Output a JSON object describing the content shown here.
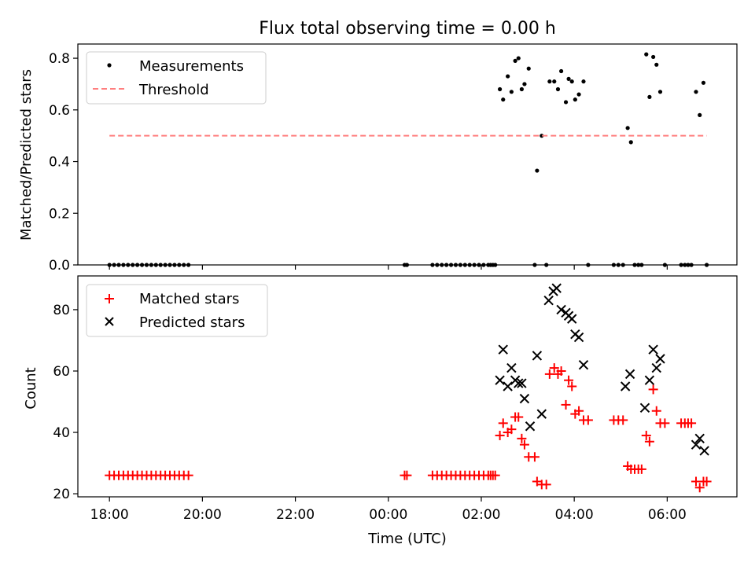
{
  "figure": {
    "title": "Flux total observing time = 0.00 h",
    "xlabel": "Time (UTC)",
    "x_tick_labels": [
      "18:00",
      "20:00",
      "22:00",
      "00:00",
      "02:00",
      "04:00",
      "06:00"
    ],
    "x_range_hours": [
      -0.68,
      13.5
    ]
  },
  "chart_data": [
    {
      "type": "scatter",
      "ylabel": "Matched/Predicted stars",
      "ylim": [
        0,
        0.855
      ],
      "y_ticks": [
        0.0,
        0.2,
        0.4,
        0.6,
        0.8
      ],
      "y_tick_labels": [
        "0.0",
        "0.2",
        "0.4",
        "0.6",
        "0.8"
      ],
      "legend_placement": "upper-left",
      "x_unit": "hours since 18:00 UTC",
      "series": [
        {
          "name": "Measurements",
          "marker": "dot",
          "color": "#000000",
          "points": [
            [
              0.0,
              0
            ],
            [
              0.1,
              0
            ],
            [
              0.2,
              0
            ],
            [
              0.3,
              0
            ],
            [
              0.4,
              0
            ],
            [
              0.5,
              0
            ],
            [
              0.6,
              0
            ],
            [
              0.7,
              0
            ],
            [
              0.8,
              0
            ],
            [
              0.9,
              0
            ],
            [
              1.0,
              0
            ],
            [
              1.1,
              0
            ],
            [
              1.2,
              0
            ],
            [
              1.3,
              0
            ],
            [
              1.4,
              0
            ],
            [
              1.5,
              0
            ],
            [
              1.6,
              0
            ],
            [
              1.7,
              0
            ],
            [
              6.35,
              0
            ],
            [
              6.4,
              0
            ],
            [
              6.95,
              0
            ],
            [
              7.05,
              0
            ],
            [
              7.15,
              0
            ],
            [
              7.25,
              0
            ],
            [
              7.35,
              0
            ],
            [
              7.45,
              0
            ],
            [
              7.55,
              0
            ],
            [
              7.65,
              0
            ],
            [
              7.75,
              0
            ],
            [
              7.85,
              0
            ],
            [
              7.95,
              0
            ],
            [
              8.05,
              0
            ],
            [
              8.15,
              0
            ],
            [
              8.2,
              0
            ],
            [
              8.25,
              0
            ],
            [
              8.3,
              0
            ],
            [
              8.4,
              0.68
            ],
            [
              8.47,
              0.64
            ],
            [
              8.57,
              0.73
            ],
            [
              8.65,
              0.67
            ],
            [
              8.73,
              0.79
            ],
            [
              8.8,
              0.8
            ],
            [
              8.87,
              0.68
            ],
            [
              8.93,
              0.7
            ],
            [
              9.02,
              0.76
            ],
            [
              9.15,
              0
            ],
            [
              9.2,
              0.365
            ],
            [
              9.3,
              0.5
            ],
            [
              9.4,
              0
            ],
            [
              9.47,
              0.71
            ],
            [
              9.57,
              0.71
            ],
            [
              9.65,
              0.68
            ],
            [
              9.72,
              0.75
            ],
            [
              9.82,
              0.63
            ],
            [
              9.88,
              0.72
            ],
            [
              9.95,
              0.71
            ],
            [
              10.02,
              0.64
            ],
            [
              10.1,
              0.66
            ],
            [
              10.2,
              0.71
            ],
            [
              10.3,
              0
            ],
            [
              10.85,
              0
            ],
            [
              10.95,
              0
            ],
            [
              11.05,
              0
            ],
            [
              11.15,
              0.53
            ],
            [
              11.22,
              0.475
            ],
            [
              11.3,
              0
            ],
            [
              11.38,
              0
            ],
            [
              11.45,
              0
            ],
            [
              11.55,
              0.815
            ],
            [
              11.62,
              0.65
            ],
            [
              11.7,
              0.805
            ],
            [
              11.77,
              0.775
            ],
            [
              11.85,
              0.67
            ],
            [
              11.95,
              0
            ],
            [
              12.3,
              0
            ],
            [
              12.38,
              0
            ],
            [
              12.45,
              0
            ],
            [
              12.52,
              0
            ],
            [
              12.62,
              0.67
            ],
            [
              12.7,
              0.58
            ],
            [
              12.78,
              0.705
            ],
            [
              12.85,
              0
            ]
          ]
        },
        {
          "name": "Threshold",
          "marker": "dashed-line",
          "color": "#ff7f7f",
          "points": [
            [
              0.0,
              0.5
            ],
            [
              12.85,
              0.5
            ]
          ]
        }
      ]
    },
    {
      "type": "scatter",
      "ylabel": "Count",
      "ylim": [
        19,
        91
      ],
      "y_ticks": [
        20,
        40,
        60,
        80
      ],
      "y_tick_labels": [
        "20",
        "40",
        "60",
        "80"
      ],
      "legend_placement": "upper-left",
      "x_unit": "hours since 18:00 UTC",
      "series": [
        {
          "name": "Matched stars",
          "marker": "plus",
          "color": "#ff0000",
          "points": [
            [
              0.0,
              26
            ],
            [
              0.1,
              26
            ],
            [
              0.2,
              26
            ],
            [
              0.3,
              26
            ],
            [
              0.4,
              26
            ],
            [
              0.5,
              26
            ],
            [
              0.6,
              26
            ],
            [
              0.7,
              26
            ],
            [
              0.8,
              26
            ],
            [
              0.9,
              26
            ],
            [
              1.0,
              26
            ],
            [
              1.1,
              26
            ],
            [
              1.2,
              26
            ],
            [
              1.3,
              26
            ],
            [
              1.4,
              26
            ],
            [
              1.5,
              26
            ],
            [
              1.6,
              26
            ],
            [
              1.7,
              26
            ],
            [
              6.35,
              26
            ],
            [
              6.4,
              26
            ],
            [
              6.95,
              26
            ],
            [
              7.05,
              26
            ],
            [
              7.15,
              26
            ],
            [
              7.25,
              26
            ],
            [
              7.35,
              26
            ],
            [
              7.45,
              26
            ],
            [
              7.55,
              26
            ],
            [
              7.65,
              26
            ],
            [
              7.75,
              26
            ],
            [
              7.85,
              26
            ],
            [
              7.95,
              26
            ],
            [
              8.05,
              26
            ],
            [
              8.15,
              26
            ],
            [
              8.2,
              26
            ],
            [
              8.25,
              26
            ],
            [
              8.3,
              26
            ],
            [
              8.4,
              39
            ],
            [
              8.47,
              43
            ],
            [
              8.57,
              40
            ],
            [
              8.65,
              41
            ],
            [
              8.73,
              45
            ],
            [
              8.8,
              45
            ],
            [
              8.87,
              38
            ],
            [
              8.93,
              36
            ],
            [
              9.02,
              32
            ],
            [
              9.15,
              32
            ],
            [
              9.2,
              24
            ],
            [
              9.3,
              23
            ],
            [
              9.4,
              23
            ],
            [
              9.47,
              59
            ],
            [
              9.57,
              61
            ],
            [
              9.65,
              59
            ],
            [
              9.72,
              60
            ],
            [
              9.82,
              49
            ],
            [
              9.88,
              57
            ],
            [
              9.95,
              55
            ],
            [
              10.02,
              46
            ],
            [
              10.1,
              47
            ],
            [
              10.2,
              44
            ],
            [
              10.3,
              44
            ],
            [
              10.85,
              44
            ],
            [
              10.95,
              44
            ],
            [
              11.05,
              44
            ],
            [
              11.15,
              29
            ],
            [
              11.22,
              28
            ],
            [
              11.3,
              28
            ],
            [
              11.38,
              28
            ],
            [
              11.45,
              28
            ],
            [
              11.55,
              39
            ],
            [
              11.62,
              37
            ],
            [
              11.7,
              54
            ],
            [
              11.77,
              47
            ],
            [
              11.85,
              43
            ],
            [
              11.95,
              43
            ],
            [
              12.3,
              43
            ],
            [
              12.38,
              43
            ],
            [
              12.45,
              43
            ],
            [
              12.52,
              43
            ],
            [
              12.62,
              24
            ],
            [
              12.7,
              22
            ],
            [
              12.78,
              24
            ],
            [
              12.85,
              24
            ]
          ]
        },
        {
          "name": "Predicted stars",
          "marker": "x",
          "color": "#000000",
          "points": [
            [
              8.4,
              57
            ],
            [
              8.47,
              67
            ],
            [
              8.57,
              55
            ],
            [
              8.65,
              61
            ],
            [
              8.73,
              57
            ],
            [
              8.8,
              56
            ],
            [
              8.87,
              56
            ],
            [
              8.93,
              51
            ],
            [
              9.05,
              42
            ],
            [
              9.2,
              65
            ],
            [
              9.3,
              46
            ],
            [
              9.45,
              83
            ],
            [
              9.55,
              86
            ],
            [
              9.62,
              87
            ],
            [
              9.72,
              80
            ],
            [
              9.82,
              79
            ],
            [
              9.88,
              78
            ],
            [
              9.95,
              77
            ],
            [
              10.02,
              72
            ],
            [
              10.1,
              71
            ],
            [
              10.2,
              62
            ],
            [
              11.1,
              55
            ],
            [
              11.2,
              59
            ],
            [
              11.52,
              48
            ],
            [
              11.62,
              57
            ],
            [
              11.7,
              67
            ],
            [
              11.77,
              61
            ],
            [
              11.85,
              64
            ],
            [
              12.62,
              36
            ],
            [
              12.7,
              38
            ],
            [
              12.8,
              34
            ]
          ]
        }
      ]
    }
  ]
}
